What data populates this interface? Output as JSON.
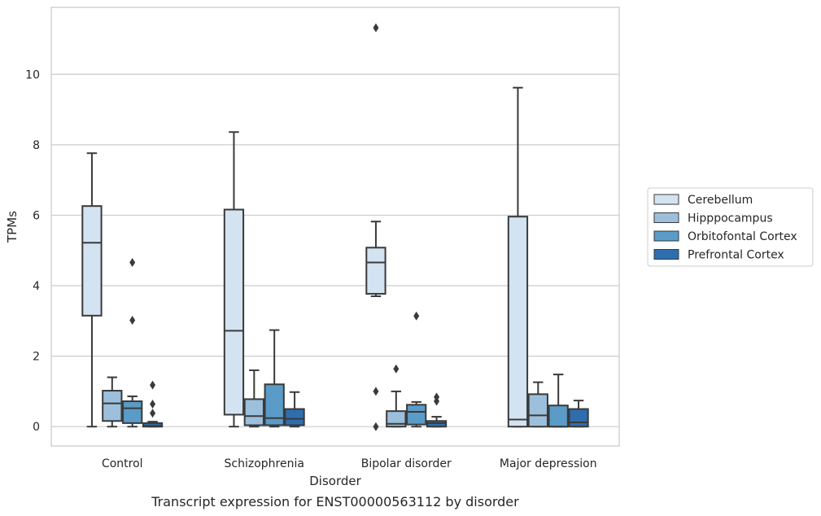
{
  "chart_data": {
    "type": "boxplot",
    "caption": "Transcript expression for ENST00000563112 by disorder",
    "xlabel": "Disorder",
    "ylabel": "TPMs",
    "ylim": [
      -0.55,
      11.9
    ],
    "yticks": [
      0,
      2,
      4,
      6,
      8,
      10
    ],
    "grid": "horizontal",
    "legend_position": "right",
    "categories": [
      "Control",
      "Schizophrenia",
      "Bipolar disorder",
      "Major depression"
    ],
    "series": [
      {
        "name": "Cerebellum",
        "color": "#d4e3f2",
        "boxes": [
          {
            "whislo": 0.0,
            "q1": 3.15,
            "med": 5.22,
            "q3": 6.26,
            "whishi": 7.76,
            "fliers": []
          },
          {
            "whislo": 0.0,
            "q1": 0.34,
            "med": 2.72,
            "q3": 6.16,
            "whishi": 8.36,
            "fliers": []
          },
          {
            "whislo": 3.7,
            "q1": 3.77,
            "med": 4.66,
            "q3": 5.08,
            "whishi": 5.82,
            "fliers": [
              11.32,
              1.0,
              0.0
            ]
          },
          {
            "whislo": 0.0,
            "q1": 0.0,
            "med": 0.2,
            "q3": 5.96,
            "whishi": 9.62,
            "fliers": []
          }
        ]
      },
      {
        "name": "Hipppocampus",
        "color": "#9cc0dc",
        "boxes": [
          {
            "whislo": 0.0,
            "q1": 0.16,
            "med": 0.66,
            "q3": 1.02,
            "whishi": 1.4,
            "fliers": []
          },
          {
            "whislo": 0.0,
            "q1": 0.04,
            "med": 0.3,
            "q3": 0.78,
            "whishi": 1.6,
            "fliers": []
          },
          {
            "whislo": 0.0,
            "q1": 0.0,
            "med": 0.08,
            "q3": 0.44,
            "whishi": 1.0,
            "fliers": [
              1.64
            ]
          },
          {
            "whislo": 0.0,
            "q1": 0.0,
            "med": 0.32,
            "q3": 0.92,
            "whishi": 1.26,
            "fliers": []
          }
        ]
      },
      {
        "name": "Orbitofontal Cortex",
        "color": "#5a9bc8",
        "boxes": [
          {
            "whislo": 0.0,
            "q1": 0.1,
            "med": 0.52,
            "q3": 0.72,
            "whishi": 0.86,
            "fliers": [
              4.66,
              3.02
            ]
          },
          {
            "whislo": 0.0,
            "q1": 0.04,
            "med": 0.24,
            "q3": 1.2,
            "whishi": 2.74,
            "fliers": []
          },
          {
            "whislo": 0.0,
            "q1": 0.06,
            "med": 0.42,
            "q3": 0.62,
            "whishi": 0.7,
            "fliers": [
              3.14
            ]
          },
          {
            "whislo": 0.0,
            "q1": 0.0,
            "med": 0.0,
            "q3": 0.6,
            "whishi": 1.48,
            "fliers": []
          }
        ]
      },
      {
        "name": "Prefrontal Cortex",
        "color": "#2e6eae",
        "boxes": [
          {
            "whislo": 0.0,
            "q1": 0.0,
            "med": 0.02,
            "q3": 0.1,
            "whishi": 0.14,
            "fliers": [
              1.18,
              0.64,
              0.38
            ]
          },
          {
            "whislo": 0.0,
            "q1": 0.04,
            "med": 0.22,
            "q3": 0.5,
            "whishi": 0.98,
            "fliers": []
          },
          {
            "whislo": 0.0,
            "q1": 0.0,
            "med": 0.1,
            "q3": 0.16,
            "whishi": 0.28,
            "fliers": [
              0.84,
              0.72
            ]
          },
          {
            "whislo": 0.0,
            "q1": 0.0,
            "med": 0.12,
            "q3": 0.5,
            "whishi": 0.74,
            "fliers": []
          }
        ]
      }
    ]
  }
}
